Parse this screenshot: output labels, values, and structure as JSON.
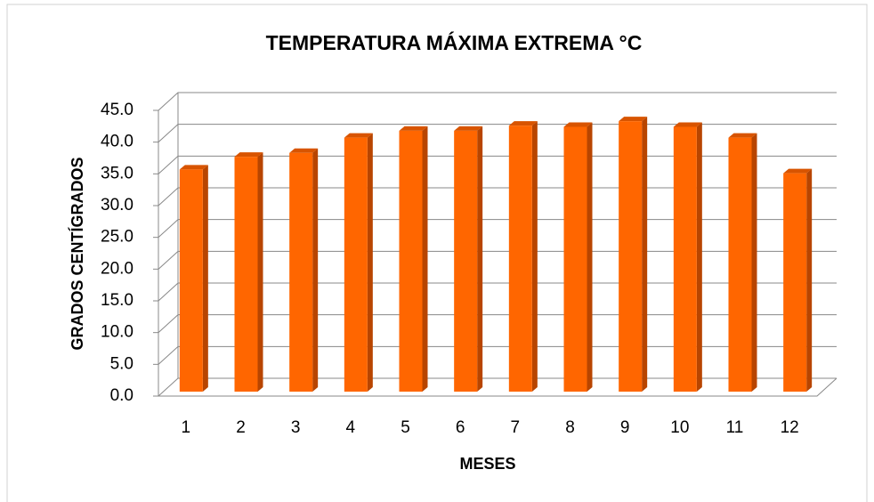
{
  "chart_data": {
    "type": "bar3d",
    "title": "TEMPERATURA MÁXIMA EXTREMA °C",
    "x_label": "MESES",
    "y_label": "GRADOS CENTÍGRADOS",
    "categories": [
      "1",
      "2",
      "3",
      "4",
      "5",
      "6",
      "7",
      "8",
      "9",
      "10",
      "11",
      "12"
    ],
    "values": [
      35.0,
      37.0,
      37.6,
      40.0,
      41.1,
      41.1,
      41.9,
      41.7,
      42.6,
      41.7,
      40.0,
      34.4
    ],
    "color": "#ff6600",
    "ylim": [
      0,
      45
    ],
    "yticks": [
      {
        "value": 0,
        "label": "0.0"
      },
      {
        "value": 5,
        "label": "5.0"
      },
      {
        "value": 10,
        "label": "10.0"
      },
      {
        "value": 15,
        "label": "15.0"
      },
      {
        "value": 20,
        "label": "20.0"
      },
      {
        "value": 25,
        "label": "25.0"
      },
      {
        "value": 30,
        "label": "30.0"
      },
      {
        "value": 35,
        "label": "35.0"
      },
      {
        "value": 40,
        "label": "40.0"
      },
      {
        "value": 45,
        "label": "45.0"
      }
    ],
    "grid": true
  }
}
